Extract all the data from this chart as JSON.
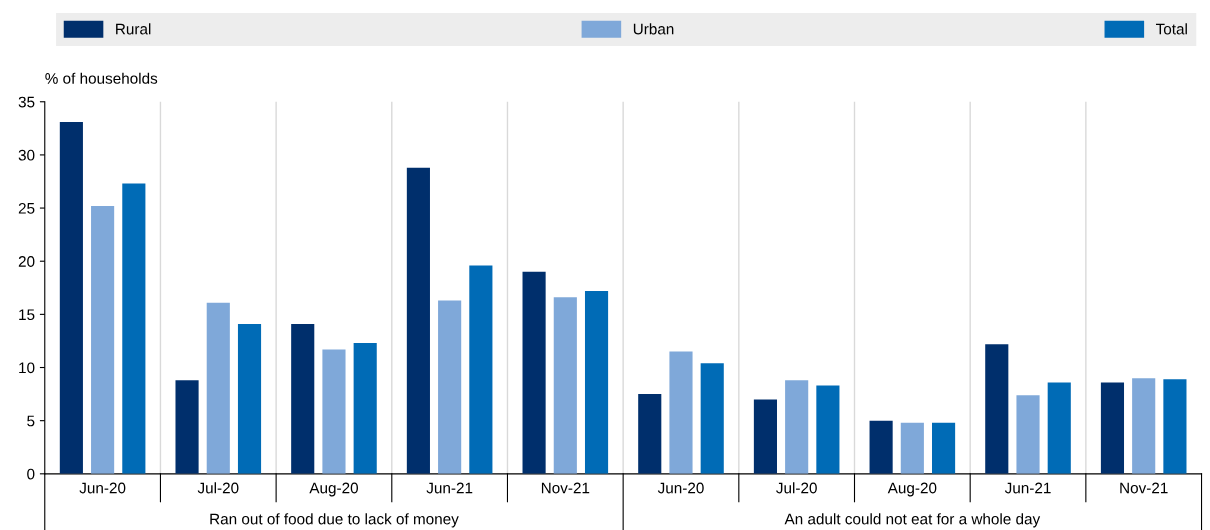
{
  "chart_data": {
    "type": "bar",
    "ylabel": "% of households",
    "categories": [
      "Jun-20",
      "Jul-20",
      "Aug-20",
      "Jun-21",
      "Nov-21",
      "Jun-20",
      "Jul-20",
      "Aug-20",
      "Jun-21",
      "Nov-21"
    ],
    "series": [
      {
        "name": "Rural",
        "color": "#002f6c",
        "values": [
          33.1,
          8.8,
          14.1,
          28.8,
          19.0,
          7.5,
          7.0,
          5.0,
          12.2,
          8.6
        ]
      },
      {
        "name": "Urban",
        "color": "#7fa8d9",
        "values": [
          25.2,
          16.1,
          11.7,
          16.3,
          16.6,
          11.5,
          8.8,
          4.8,
          7.4,
          9.0
        ]
      },
      {
        "name": "Total",
        "color": "#006bb6",
        "values": [
          27.3,
          14.1,
          12.3,
          19.6,
          17.2,
          10.4,
          8.3,
          4.8,
          8.6,
          8.9
        ]
      }
    ],
    "annotations": [
      "Ran out of food due to lack of money",
      "An adult could not eat for a whole day"
    ],
    "ylim": [
      0,
      35
    ],
    "yticks": [
      0,
      5,
      10,
      15,
      20,
      25,
      30,
      35
    ],
    "grid": "x",
    "legend": "top"
  }
}
